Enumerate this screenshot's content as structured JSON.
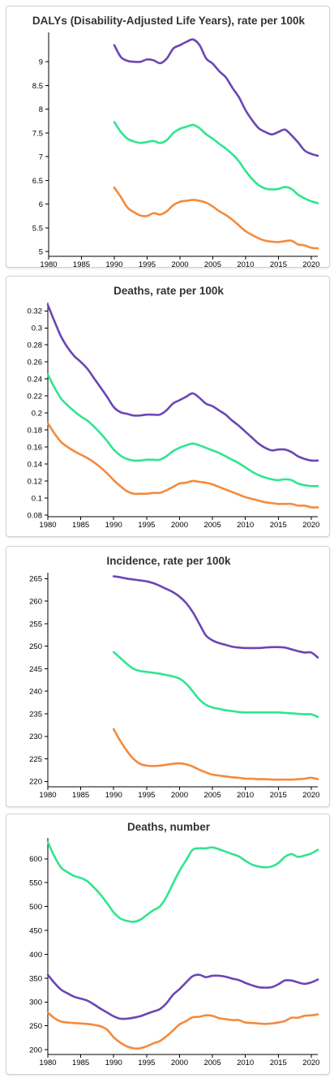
{
  "colors": {
    "purple": "#6b46b5",
    "green": "#2ee68e",
    "orange": "#f58a3c"
  },
  "chart_data": [
    {
      "type": "line",
      "title": "DALYs (Disability-Adjusted Life Years), rate per 100k",
      "xlabel": "",
      "ylabel": "",
      "xlim": [
        1980,
        2021
      ],
      "ylim": [
        4.9,
        9.55
      ],
      "xticks": [
        1980,
        1985,
        1990,
        1995,
        2000,
        2005,
        2010,
        2015,
        2020
      ],
      "yticks": [
        "5",
        "5.5",
        "6",
        "6.5",
        "7",
        "7.5",
        "8",
        "8.5",
        "9"
      ],
      "grid": false,
      "series": [
        {
          "color": "purple",
          "x": [
            1990,
            1991,
            1992,
            1993,
            1994,
            1995,
            1996,
            1997,
            1998,
            1999,
            2000,
            2001,
            2002,
            2003,
            2004,
            2005,
            2006,
            2007,
            2008,
            2009,
            2010,
            2011,
            2012,
            2013,
            2014,
            2015,
            2016,
            2017,
            2018,
            2019,
            2020,
            2021
          ],
          "y": [
            9.35,
            9.1,
            9.02,
            9.0,
            9.0,
            9.05,
            9.03,
            8.97,
            9.07,
            9.28,
            9.35,
            9.42,
            9.47,
            9.35,
            9.07,
            8.96,
            8.8,
            8.67,
            8.45,
            8.25,
            7.98,
            7.77,
            7.6,
            7.52,
            7.47,
            7.52,
            7.57,
            7.45,
            7.3,
            7.13,
            7.06,
            7.02
          ]
        },
        {
          "color": "green",
          "x": [
            1990,
            1991,
            1992,
            1993,
            1994,
            1995,
            1996,
            1997,
            1998,
            1999,
            2000,
            2001,
            2002,
            2003,
            2004,
            2005,
            2006,
            2007,
            2008,
            2009,
            2010,
            2011,
            2012,
            2013,
            2014,
            2015,
            2016,
            2017,
            2018,
            2019,
            2020,
            2021
          ],
          "y": [
            7.73,
            7.52,
            7.38,
            7.32,
            7.29,
            7.31,
            7.33,
            7.29,
            7.35,
            7.5,
            7.59,
            7.63,
            7.67,
            7.6,
            7.47,
            7.38,
            7.27,
            7.17,
            7.05,
            6.9,
            6.7,
            6.53,
            6.4,
            6.33,
            6.31,
            6.32,
            6.36,
            6.32,
            6.2,
            6.12,
            6.06,
            6.02
          ]
        },
        {
          "color": "orange",
          "x": [
            1990,
            1991,
            1992,
            1993,
            1994,
            1995,
            1996,
            1997,
            1998,
            1999,
            2000,
            2001,
            2002,
            2003,
            2004,
            2005,
            2006,
            2007,
            2008,
            2009,
            2010,
            2011,
            2012,
            2013,
            2014,
            2015,
            2016,
            2017,
            2018,
            2019,
            2020,
            2021
          ],
          "y": [
            6.35,
            6.15,
            5.93,
            5.83,
            5.76,
            5.75,
            5.81,
            5.78,
            5.85,
            5.98,
            6.05,
            6.07,
            6.09,
            6.07,
            6.03,
            5.95,
            5.85,
            5.77,
            5.67,
            5.55,
            5.43,
            5.35,
            5.28,
            5.23,
            5.21,
            5.2,
            5.22,
            5.23,
            5.15,
            5.13,
            5.08,
            5.07
          ]
        }
      ]
    },
    {
      "type": "line",
      "title": "Deaths, rate per 100k",
      "xlabel": "",
      "ylabel": "",
      "xlim": [
        1980,
        2021
      ],
      "ylim": [
        0.078,
        0.326
      ],
      "xticks": [
        1980,
        1985,
        1990,
        1995,
        2000,
        2005,
        2010,
        2015,
        2020
      ],
      "yticks": [
        "0.08",
        "0.1",
        "0.12",
        "0.14",
        "0.16",
        "0.18",
        "0.2",
        "0.22",
        "0.24",
        "0.26",
        "0.28",
        "0.3",
        "0.32"
      ],
      "grid": false,
      "series": [
        {
          "color": "purple",
          "x": [
            1980,
            1981,
            1982,
            1983,
            1984,
            1985,
            1986,
            1987,
            1988,
            1989,
            1990,
            1991,
            1992,
            1993,
            1994,
            1995,
            1996,
            1997,
            1998,
            1999,
            2000,
            2001,
            2002,
            2003,
            2004,
            2005,
            2006,
            2007,
            2008,
            2009,
            2010,
            2011,
            2012,
            2013,
            2014,
            2015,
            2016,
            2017,
            2018,
            2019,
            2020,
            2021
          ],
          "y": [
            0.327,
            0.308,
            0.29,
            0.277,
            0.267,
            0.26,
            0.252,
            0.241,
            0.23,
            0.219,
            0.207,
            0.201,
            0.199,
            0.197,
            0.197,
            0.198,
            0.198,
            0.198,
            0.203,
            0.211,
            0.215,
            0.219,
            0.223,
            0.218,
            0.211,
            0.208,
            0.203,
            0.198,
            0.191,
            0.185,
            0.178,
            0.171,
            0.164,
            0.159,
            0.156,
            0.157,
            0.157,
            0.154,
            0.149,
            0.146,
            0.144,
            0.144
          ]
        },
        {
          "color": "green",
          "x": [
            1980,
            1981,
            1982,
            1983,
            1984,
            1985,
            1986,
            1987,
            1988,
            1989,
            1990,
            1991,
            1992,
            1993,
            1994,
            1995,
            1996,
            1997,
            1998,
            1999,
            2000,
            2001,
            2002,
            2003,
            2004,
            2005,
            2006,
            2007,
            2008,
            2009,
            2010,
            2011,
            2012,
            2013,
            2014,
            2015,
            2016,
            2017,
            2018,
            2019,
            2020,
            2021
          ],
          "y": [
            0.245,
            0.23,
            0.217,
            0.209,
            0.202,
            0.196,
            0.191,
            0.184,
            0.176,
            0.167,
            0.157,
            0.15,
            0.146,
            0.144,
            0.144,
            0.145,
            0.145,
            0.145,
            0.149,
            0.155,
            0.159,
            0.162,
            0.164,
            0.162,
            0.159,
            0.156,
            0.153,
            0.149,
            0.145,
            0.141,
            0.136,
            0.131,
            0.127,
            0.124,
            0.122,
            0.121,
            0.122,
            0.121,
            0.117,
            0.115,
            0.114,
            0.114
          ]
        },
        {
          "color": "orange",
          "x": [
            1980,
            1981,
            1982,
            1983,
            1984,
            1985,
            1986,
            1987,
            1988,
            1989,
            1990,
            1991,
            1992,
            1993,
            1994,
            1995,
            1996,
            1997,
            1998,
            1999,
            2000,
            2001,
            2002,
            2003,
            2004,
            2005,
            2006,
            2007,
            2008,
            2009,
            2010,
            2011,
            2012,
            2013,
            2014,
            2015,
            2016,
            2017,
            2018,
            2019,
            2020,
            2021
          ],
          "y": [
            0.188,
            0.176,
            0.166,
            0.16,
            0.155,
            0.151,
            0.147,
            0.142,
            0.136,
            0.129,
            0.121,
            0.114,
            0.108,
            0.105,
            0.105,
            0.105,
            0.106,
            0.106,
            0.109,
            0.113,
            0.117,
            0.118,
            0.12,
            0.119,
            0.118,
            0.116,
            0.113,
            0.11,
            0.107,
            0.104,
            0.101,
            0.099,
            0.097,
            0.095,
            0.094,
            0.093,
            0.093,
            0.093,
            0.091,
            0.091,
            0.089,
            0.089
          ]
        }
      ]
    },
    {
      "type": "line",
      "title": "Incidence, rate per 100k",
      "xlabel": "",
      "ylabel": "",
      "xlim": [
        1980,
        2021
      ],
      "ylim": [
        218.8,
        265.6
      ],
      "xticks": [
        1980,
        1985,
        1990,
        1995,
        2000,
        2005,
        2010,
        2015,
        2020
      ],
      "yticks": [
        "220",
        "225",
        "230",
        "235",
        "240",
        "245",
        "250",
        "255",
        "260",
        "265"
      ],
      "grid": false,
      "series": [
        {
          "color": "purple",
          "x": [
            1990,
            1991,
            1992,
            1993,
            1994,
            1995,
            1996,
            1997,
            1998,
            1999,
            2000,
            2001,
            2002,
            2003,
            2004,
            2005,
            2006,
            2007,
            2008,
            2009,
            2010,
            2011,
            2012,
            2013,
            2014,
            2015,
            2016,
            2017,
            2018,
            2019,
            2020,
            2021
          ],
          "y": [
            265.5,
            265.3,
            265.0,
            264.8,
            264.6,
            264.4,
            264.0,
            263.4,
            262.7,
            262.0,
            261.0,
            259.6,
            257.6,
            255.0,
            252.4,
            251.3,
            250.7,
            250.3,
            249.9,
            249.7,
            249.6,
            249.6,
            249.6,
            249.7,
            249.8,
            249.8,
            249.7,
            249.3,
            248.9,
            248.6,
            248.6,
            247.5
          ]
        },
        {
          "color": "green",
          "x": [
            1990,
            1991,
            1992,
            1993,
            1994,
            1995,
            1996,
            1997,
            1998,
            1999,
            2000,
            2001,
            2002,
            2003,
            2004,
            2005,
            2006,
            2007,
            2008,
            2009,
            2010,
            2011,
            2012,
            2013,
            2014,
            2015,
            2016,
            2017,
            2018,
            2019,
            2020,
            2021
          ],
          "y": [
            248.7,
            247.4,
            246.1,
            245.0,
            244.5,
            244.3,
            244.1,
            243.9,
            243.6,
            243.3,
            242.8,
            241.7,
            240.0,
            238.2,
            237.0,
            236.4,
            236.1,
            235.8,
            235.6,
            235.4,
            235.3,
            235.3,
            235.3,
            235.3,
            235.3,
            235.3,
            235.2,
            235.1,
            235.0,
            234.9,
            234.9,
            234.3
          ]
        },
        {
          "color": "orange",
          "x": [
            1990,
            1991,
            1992,
            1993,
            1994,
            1995,
            1996,
            1997,
            1998,
            1999,
            2000,
            2001,
            2002,
            2003,
            2004,
            2005,
            2006,
            2007,
            2008,
            2009,
            2010,
            2011,
            2012,
            2013,
            2014,
            2015,
            2016,
            2017,
            2018,
            2019,
            2020,
            2021
          ],
          "y": [
            231.6,
            229.0,
            226.8,
            225.0,
            223.9,
            223.5,
            223.4,
            223.5,
            223.7,
            223.9,
            224.0,
            223.8,
            223.3,
            222.6,
            222.0,
            221.5,
            221.3,
            221.1,
            220.9,
            220.8,
            220.6,
            220.6,
            220.5,
            220.5,
            220.4,
            220.4,
            220.4,
            220.4,
            220.5,
            220.6,
            220.8,
            220.5
          ]
        }
      ]
    },
    {
      "type": "line",
      "title": "Deaths, number",
      "xlabel": "",
      "ylabel": "",
      "xlim": [
        1980,
        2021
      ],
      "ylim": [
        190,
        637
      ],
      "xticks": [
        1980,
        1985,
        1990,
        1995,
        2000,
        2005,
        2010,
        2015,
        2020
      ],
      "yticks": [
        "200",
        "250",
        "300",
        "350",
        "400",
        "450",
        "500",
        "550",
        "600"
      ],
      "grid": false,
      "series": [
        {
          "color": "green",
          "x": [
            1980,
            1981,
            1982,
            1983,
            1984,
            1985,
            1986,
            1987,
            1988,
            1989,
            1990,
            1991,
            1992,
            1993,
            1994,
            1995,
            1996,
            1997,
            1998,
            1999,
            2000,
            2001,
            2002,
            2003,
            2004,
            2005,
            2006,
            2007,
            2008,
            2009,
            2010,
            2011,
            2012,
            2013,
            2014,
            2015,
            2016,
            2017,
            2018,
            2019,
            2020,
            2021
          ],
          "y": [
            635,
            605,
            582,
            572,
            564,
            560,
            553,
            540,
            525,
            507,
            488,
            475,
            470,
            468,
            472,
            482,
            492,
            500,
            520,
            548,
            575,
            597,
            619,
            622,
            622,
            624,
            620,
            615,
            610,
            605,
            596,
            588,
            584,
            582,
            584,
            591,
            604,
            610,
            604,
            607,
            611,
            619
          ]
        },
        {
          "color": "purple",
          "x": [
            1980,
            1981,
            1982,
            1983,
            1984,
            1985,
            1986,
            1987,
            1988,
            1989,
            1990,
            1991,
            1992,
            1993,
            1994,
            1995,
            1996,
            1997,
            1998,
            1999,
            2000,
            2001,
            2002,
            2003,
            2004,
            2005,
            2006,
            2007,
            2008,
            2009,
            2010,
            2011,
            2012,
            2013,
            2014,
            2015,
            2016,
            2017,
            2018,
            2019,
            2020,
            2021
          ],
          "y": [
            357,
            340,
            326,
            318,
            311,
            307,
            303,
            295,
            286,
            278,
            270,
            265,
            265,
            267,
            270,
            275,
            280,
            285,
            297,
            315,
            327,
            341,
            354,
            357,
            352,
            355,
            355,
            353,
            349,
            346,
            340,
            335,
            331,
            330,
            331,
            337,
            345,
            345,
            341,
            338,
            341,
            347
          ]
        },
        {
          "color": "orange",
          "x": [
            1980,
            1981,
            1982,
            1983,
            1984,
            1985,
            1986,
            1987,
            1988,
            1989,
            1990,
            1991,
            1992,
            1993,
            1994,
            1995,
            1996,
            1997,
            1998,
            1999,
            2000,
            2001,
            2002,
            2003,
            2004,
            2005,
            2006,
            2007,
            2008,
            2009,
            2010,
            2011,
            2012,
            2013,
            2014,
            2015,
            2016,
            2017,
            2018,
            2019,
            2020,
            2021
          ],
          "y": [
            278,
            266,
            259,
            257,
            256,
            255,
            254,
            252,
            249,
            242,
            226,
            215,
            207,
            203,
            203,
            207,
            213,
            218,
            228,
            240,
            253,
            260,
            268,
            269,
            272,
            271,
            266,
            264,
            262,
            262,
            257,
            256,
            255,
            254,
            255,
            257,
            260,
            267,
            267,
            271,
            272,
            274
          ]
        }
      ]
    }
  ]
}
